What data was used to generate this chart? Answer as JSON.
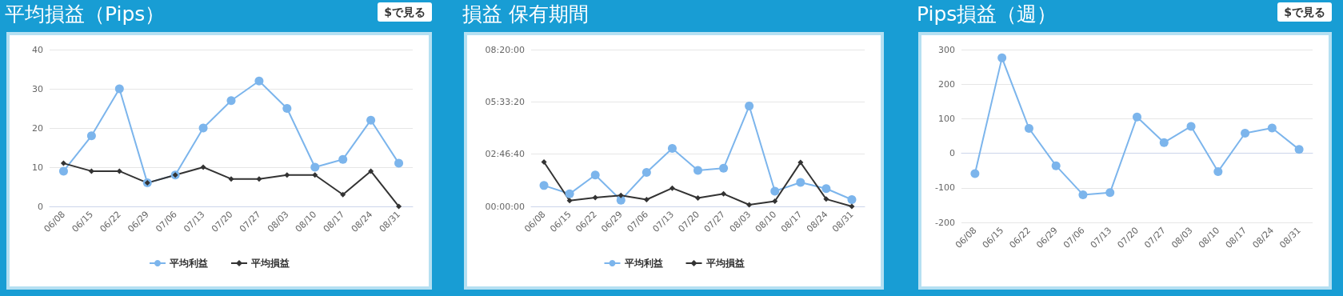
{
  "chart_data": [
    {
      "type": "line",
      "title": "平均損益（Pips）",
      "annotations": [
        "$で見る"
      ],
      "categories": [
        "06/08",
        "06/15",
        "06/22",
        "06/29",
        "07/06",
        "07/13",
        "07/20",
        "07/27",
        "08/03",
        "08/10",
        "08/17",
        "08/24",
        "08/31"
      ],
      "series": [
        {
          "name": "平均利益",
          "color": "#7cb5ec",
          "marker": "circle",
          "values": [
            9,
            18,
            30,
            6,
            8,
            20,
            27,
            32,
            25,
            10,
            12,
            22,
            11
          ]
        },
        {
          "name": "平均損益",
          "color": "#333333",
          "marker": "diamond",
          "values": [
            11,
            9,
            9,
            6,
            8,
            10,
            7,
            7,
            8,
            8,
            3,
            9,
            0
          ]
        }
      ],
      "ylim": [
        0,
        40
      ],
      "yticks": [
        0,
        10,
        20,
        30,
        40
      ],
      "grid": "y",
      "legend": "bottom"
    },
    {
      "type": "line",
      "title": "損益 保有期間",
      "categories": [
        "06/08",
        "06/15",
        "06/22",
        "06/29",
        "07/06",
        "07/13",
        "07/20",
        "07/27",
        "08/03",
        "08/10",
        "08/17",
        "08/24",
        "08/31"
      ],
      "series": [
        {
          "name": "平均利益",
          "color": "#7cb5ec",
          "marker": "circle",
          "values": [
            4000,
            2400,
            6000,
            1200,
            6500,
            11100,
            6900,
            7300,
            19200,
            2900,
            4600,
            3400,
            1300
          ]
        },
        {
          "name": "平均損益",
          "color": "#333333",
          "marker": "diamond",
          "values": [
            8500,
            1100,
            1700,
            2100,
            1300,
            3500,
            1600,
            2400,
            300,
            1000,
            8400,
            1400,
            0
          ]
        }
      ],
      "ylim": [
        0,
        30000
      ],
      "yticks": [
        {
          "value": 0,
          "label": "00:00:00"
        },
        {
          "value": 10000,
          "label": "02:46:40"
        },
        {
          "value": 20000,
          "label": "05:33:20"
        },
        {
          "value": 30000,
          "label": "08:20:00"
        }
      ],
      "grid": "y",
      "legend": "bottom"
    },
    {
      "type": "line",
      "title": "Pips損益（週）",
      "annotations": [
        "$で見る"
      ],
      "categories": [
        "06/08",
        "06/15",
        "06/22",
        "06/29",
        "07/06",
        "07/13",
        "07/20",
        "07/27",
        "08/03",
        "08/10",
        "08/17",
        "08/24",
        "08/31"
      ],
      "series": [
        {
          "color": "#7cb5ec",
          "marker": "circle",
          "values": [
            -59,
            276,
            72,
            -36,
            -120,
            -114,
            105,
            31,
            78,
            -53,
            58,
            73,
            11
          ]
        }
      ],
      "ylim": [
        -200,
        300
      ],
      "yticks": [
        -200,
        -100,
        0,
        100,
        200,
        300
      ],
      "grid": "y",
      "legend": false
    }
  ]
}
